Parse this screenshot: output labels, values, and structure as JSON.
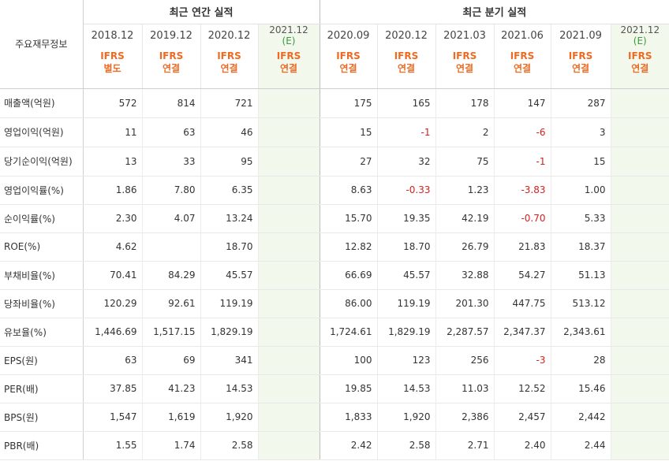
{
  "header": {
    "corner": "주요재무정보",
    "annual_group": "최근 연간 실적",
    "quarter_group": "최근 분기 실적",
    "columns": [
      {
        "date": "2018.12",
        "basis": [
          "IFRS",
          "별도"
        ],
        "est": false
      },
      {
        "date": "2019.12",
        "basis": [
          "IFRS",
          "연결"
        ],
        "est": false
      },
      {
        "date": "2020.12",
        "basis": [
          "IFRS",
          "연결"
        ],
        "est": false
      },
      {
        "date": "2021.12",
        "est_mark": "(E)",
        "basis": [
          "IFRS",
          "연결"
        ],
        "est": true
      },
      {
        "date": "2020.09",
        "basis": [
          "IFRS",
          "연결"
        ],
        "est": false
      },
      {
        "date": "2020.12",
        "basis": [
          "IFRS",
          "연결"
        ],
        "est": false
      },
      {
        "date": "2021.03",
        "basis": [
          "IFRS",
          "연결"
        ],
        "est": false
      },
      {
        "date": "2021.06",
        "basis": [
          "IFRS",
          "연결"
        ],
        "est": false
      },
      {
        "date": "2021.09",
        "basis": [
          "IFRS",
          "연결"
        ],
        "est": false
      },
      {
        "date": "2021.12",
        "est_mark": "(E)",
        "basis": [
          "IFRS",
          "연결"
        ],
        "est": true
      }
    ]
  },
  "rows": [
    {
      "label": "매출액(억원)",
      "values": [
        "572",
        "814",
        "721",
        "",
        "175",
        "165",
        "178",
        "147",
        "287",
        ""
      ]
    },
    {
      "label": "영업이익(억원)",
      "values": [
        "11",
        "63",
        "46",
        "",
        "15",
        "-1",
        "2",
        "-6",
        "3",
        ""
      ]
    },
    {
      "label": "당기순이익(억원)",
      "values": [
        "13",
        "33",
        "95",
        "",
        "27",
        "32",
        "75",
        "-1",
        "15",
        ""
      ]
    },
    {
      "label": "영업이익률(%)",
      "values": [
        "1.86",
        "7.80",
        "6.35",
        "",
        "8.63",
        "-0.33",
        "1.23",
        "-3.83",
        "1.00",
        ""
      ]
    },
    {
      "label": "순이익률(%)",
      "values": [
        "2.30",
        "4.07",
        "13.24",
        "",
        "15.70",
        "19.35",
        "42.19",
        "-0.70",
        "5.33",
        ""
      ]
    },
    {
      "label": "ROE(%)",
      "values": [
        "4.62",
        "",
        "18.70",
        "",
        "12.82",
        "18.70",
        "26.79",
        "21.83",
        "18.37",
        ""
      ]
    },
    {
      "label": "부채비율(%)",
      "values": [
        "70.41",
        "84.29",
        "45.57",
        "",
        "66.69",
        "45.57",
        "32.88",
        "54.27",
        "51.13",
        ""
      ]
    },
    {
      "label": "당좌비율(%)",
      "values": [
        "120.29",
        "92.61",
        "119.19",
        "",
        "86.00",
        "119.19",
        "201.30",
        "447.75",
        "513.12",
        ""
      ]
    },
    {
      "label": "유보율(%)",
      "values": [
        "1,446.69",
        "1,517.15",
        "1,829.19",
        "",
        "1,724.61",
        "1,829.19",
        "2,287.57",
        "2,347.37",
        "2,343.61",
        ""
      ]
    },
    {
      "label": "EPS(원)",
      "values": [
        "63",
        "69",
        "341",
        "",
        "100",
        "123",
        "256",
        "-3",
        "28",
        ""
      ]
    },
    {
      "label": "PER(배)",
      "values": [
        "37.85",
        "41.23",
        "14.53",
        "",
        "19.85",
        "14.53",
        "11.03",
        "12.52",
        "15.46",
        ""
      ]
    },
    {
      "label": "BPS(원)",
      "values": [
        "1,547",
        "1,619",
        "1,920",
        "",
        "1,833",
        "1,920",
        "2,386",
        "2,457",
        "2,442",
        ""
      ]
    },
    {
      "label": "PBR(배)",
      "values": [
        "1.55",
        "1.74",
        "2.58",
        "",
        "2.42",
        "2.58",
        "2.71",
        "2.40",
        "2.44",
        ""
      ]
    }
  ],
  "colors": {
    "negative": "#d4211f",
    "ifrs": "#ee6a22",
    "estimate_bg": "#f2f8ec",
    "estimate_mark": "#3c9a3c"
  }
}
